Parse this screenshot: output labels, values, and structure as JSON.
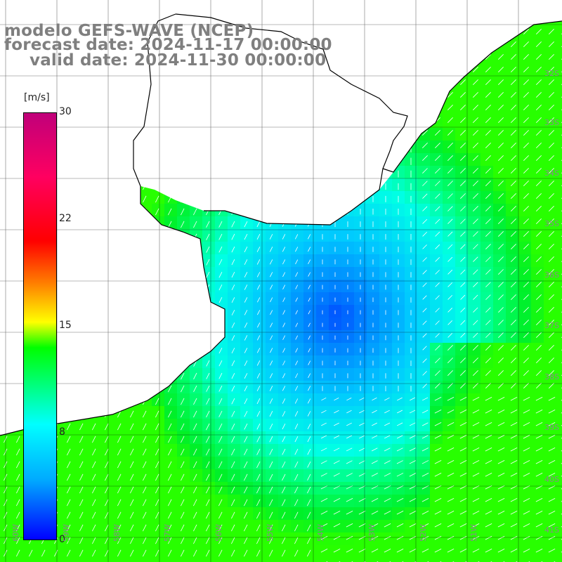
{
  "title": {
    "line1": "modelo GEFS-WAVE (NCEP)",
    "line2": "forecast date: 2024-11-17 00:00:00",
    "line3": "valid date: 2024-11-30 00:00:00"
  },
  "colorbar": {
    "unit": "[m/s]",
    "ticks": [
      "30",
      "22",
      "15",
      "8",
      "0"
    ],
    "tick_values": [
      30,
      22,
      15,
      8,
      0
    ],
    "colors": [
      "#0000ff",
      "#00aaff",
      "#00ffff",
      "#00ff00",
      "#ffff00",
      "#ff8000",
      "#ff0000",
      "#c0007a"
    ]
  },
  "lat_labels": [
    "32S",
    "33S",
    "34S",
    "35S",
    "36S",
    "37S",
    "38S",
    "39S",
    "40S",
    "41S"
  ],
  "lon_labels": [
    "60W",
    "59W",
    "58W",
    "57W",
    "56W",
    "55W",
    "54W",
    "53W",
    "52W",
    "51W"
  ],
  "colors": {
    "land": "#ffffff",
    "grid": "#000000",
    "coast": "#000000",
    "label": "#7f7f7f",
    "arrow": "#ffffff"
  }
}
